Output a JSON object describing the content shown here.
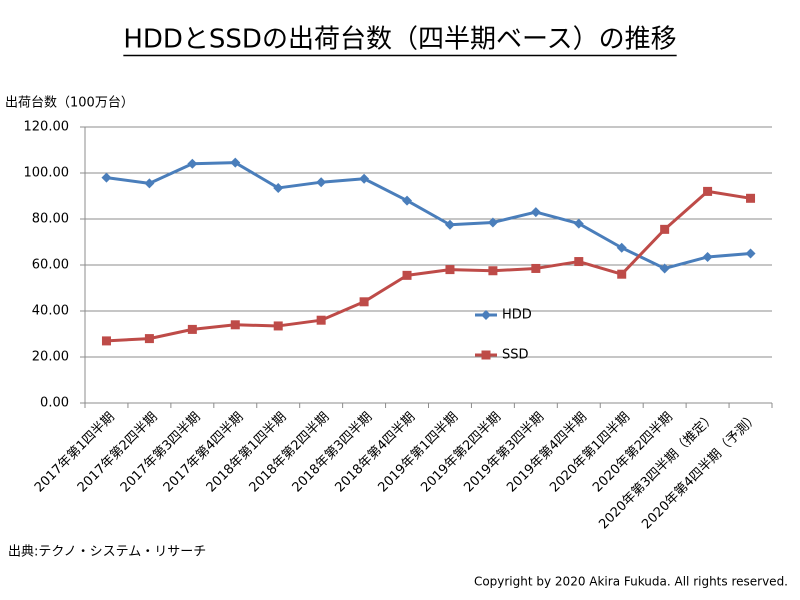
{
  "chart_data": {
    "type": "line",
    "title": "HDDとSSDの出荷台数（四半期ベース）の推移",
    "y_label": "出荷台数（100万台）",
    "categories": [
      "2017年第1四半期",
      "2017年第2四半期",
      "2017年第3四半期",
      "2017年第4四半期",
      "2018年第1四半期",
      "2018年第2四半期",
      "2018年第3四半期",
      "2018年第4四半期",
      "2019年第1四半期",
      "2019年第2四半期",
      "2019年第3四半期",
      "2019年第4四半期",
      "2020年第1四半期",
      "2020年第2四半期",
      "2020年第3四半期（推定）",
      "2020年第4四半期（予測）"
    ],
    "series": [
      {
        "name": "HDD",
        "color": "#4a7ebb",
        "marker": "diamond",
        "values": [
          98,
          95.5,
          104,
          104.5,
          93.5,
          96,
          97.5,
          88,
          77.5,
          78.5,
          83,
          78,
          67.5,
          58.5,
          63.5,
          65
        ]
      },
      {
        "name": "SSD",
        "color": "#be4b48",
        "marker": "square",
        "values": [
          27,
          28,
          32,
          34,
          33.5,
          36,
          44,
          55.5,
          58,
          57.5,
          58.5,
          61.5,
          56,
          75.5,
          92,
          89
        ]
      }
    ],
    "ylim": [
      0,
      120
    ],
    "yticks": [
      {
        "value": 0,
        "label": "0.00"
      },
      {
        "value": 20,
        "label": "20.00"
      },
      {
        "value": 40,
        "label": "40.00"
      },
      {
        "value": 60,
        "label": "60.00"
      },
      {
        "value": 80,
        "label": "80.00"
      },
      {
        "value": 100,
        "label": "100.00"
      },
      {
        "value": 120,
        "label": "120.00"
      }
    ],
    "grid": true,
    "legend": "center",
    "source": "出典:テクノ・システム・リサーチ",
    "copyright": "Copyright by 2020 Akira Fukuda.  All rights reserved."
  }
}
